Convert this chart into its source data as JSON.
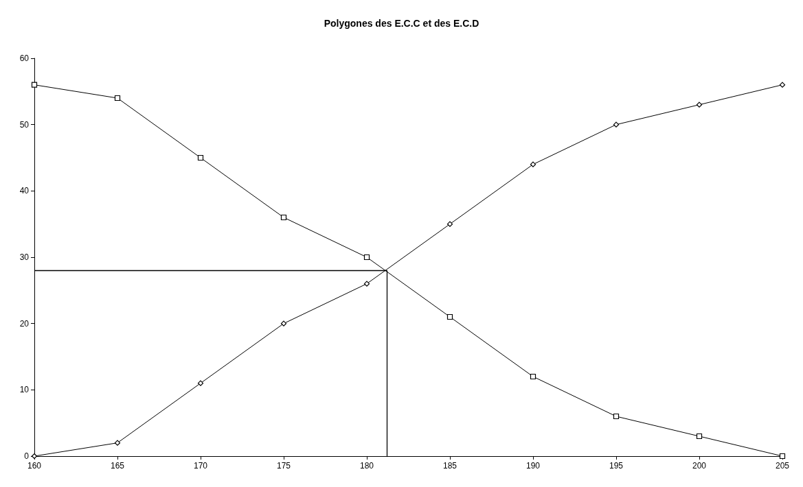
{
  "chart_data": {
    "type": "line",
    "title": "Polygones des E.C.C et des E.C.D",
    "x": [
      160,
      165,
      170,
      175,
      180,
      185,
      190,
      195,
      200,
      205
    ],
    "series": [
      {
        "color": "#000000",
        "marker": "diamond",
        "values": [
          0,
          2,
          11,
          20,
          26,
          35,
          44,
          50,
          53,
          56
        ]
      },
      {
        "color": "#000000",
        "marker": "square",
        "values": [
          56,
          54,
          45,
          36,
          30,
          21,
          12,
          6,
          3,
          0
        ]
      }
    ],
    "ref_lines": [
      {
        "axis": "y",
        "value": 28,
        "color": "#000000"
      },
      {
        "axis": "x",
        "value": 181.2,
        "color": "#000000"
      }
    ],
    "xlim": [
      160,
      205
    ],
    "xticks": [
      160,
      165,
      170,
      175,
      180,
      185,
      190,
      195,
      200,
      205
    ],
    "ylim": [
      0,
      60
    ],
    "yticks": [
      0,
      10,
      20,
      30,
      40,
      50,
      60
    ],
    "grid": false
  }
}
